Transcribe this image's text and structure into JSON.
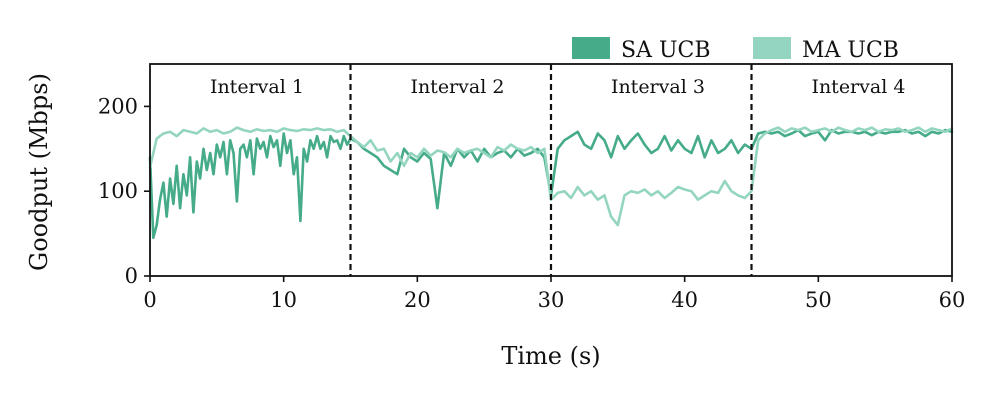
{
  "chart_data": {
    "type": "line",
    "title": "",
    "xlabel": "Time (s)",
    "ylabel": "Goodput (Mbps)",
    "xlim": [
      0,
      60
    ],
    "ylim": [
      0,
      250
    ],
    "xticks": [
      0,
      10,
      20,
      30,
      40,
      50,
      60
    ],
    "yticks": [
      0,
      100,
      200
    ],
    "grid": false,
    "legend_position": "top-right",
    "vlines": [
      15,
      30,
      45
    ],
    "interval_labels": [
      {
        "text": "Interval 1",
        "x": 8
      },
      {
        "text": "Interval 2",
        "x": 23
      },
      {
        "text": "Interval 3",
        "x": 38
      },
      {
        "text": "Interval 4",
        "x": 53
      }
    ],
    "series": [
      {
        "name": "SA UCB",
        "color": "#45ab88",
        "x": [
          0,
          0.25,
          0.5,
          0.75,
          1,
          1.25,
          1.5,
          1.75,
          2,
          2.25,
          2.5,
          2.75,
          3,
          3.25,
          3.5,
          3.75,
          4,
          4.25,
          4.5,
          4.75,
          5,
          5.25,
          5.5,
          5.75,
          6,
          6.25,
          6.5,
          6.75,
          7,
          7.25,
          7.5,
          7.75,
          8,
          8.25,
          8.5,
          8.75,
          9,
          9.25,
          9.5,
          9.75,
          10,
          10.25,
          10.5,
          10.75,
          11,
          11.25,
          11.5,
          11.75,
          12,
          12.25,
          12.5,
          12.75,
          13,
          13.25,
          13.5,
          13.75,
          14,
          14.25,
          14.5,
          14.75,
          15,
          15.5,
          16,
          16.5,
          17,
          17.5,
          18,
          18.5,
          19,
          19.5,
          20,
          20.5,
          21,
          21.5,
          22,
          22.5,
          23,
          23.5,
          24,
          24.5,
          25,
          25.5,
          26,
          26.5,
          27,
          27.5,
          28,
          28.5,
          29,
          29.5,
          30,
          30.5,
          31,
          31.5,
          32,
          32.5,
          33,
          33.5,
          34,
          34.5,
          35,
          35.5,
          36,
          36.5,
          37,
          37.5,
          38,
          38.5,
          39,
          39.5,
          40,
          40.5,
          41,
          41.5,
          42,
          42.5,
          43,
          43.5,
          44,
          44.5,
          45,
          45.5,
          46,
          46.5,
          47,
          47.5,
          48,
          48.5,
          49,
          49.5,
          50,
          50.5,
          51,
          51.5,
          52,
          52.5,
          53,
          53.5,
          54,
          54.5,
          55,
          55.5,
          56,
          56.5,
          57,
          57.5,
          58,
          58.5,
          59,
          59.5,
          60
        ],
        "y": [
          140,
          45,
          60,
          90,
          110,
          70,
          115,
          85,
          130,
          80,
          120,
          95,
          140,
          75,
          135,
          115,
          150,
          125,
          145,
          120,
          155,
          140,
          158,
          120,
          160,
          145,
          88,
          150,
          155,
          140,
          160,
          120,
          162,
          150,
          158,
          140,
          165,
          152,
          160,
          130,
          168,
          145,
          160,
          120,
          140,
          65,
          150,
          135,
          160,
          150,
          165,
          150,
          158,
          140,
          165,
          158,
          160,
          150,
          165,
          155,
          162,
          158,
          150,
          145,
          140,
          130,
          125,
          120,
          150,
          140,
          135,
          145,
          138,
          80,
          145,
          130,
          150,
          140,
          148,
          135,
          150,
          140,
          145,
          148,
          140,
          150,
          142,
          145,
          150,
          140,
          95,
          150,
          160,
          165,
          170,
          155,
          150,
          168,
          160,
          140,
          165,
          150,
          160,
          168,
          155,
          145,
          150,
          165,
          148,
          160,
          150,
          145,
          165,
          140,
          160,
          145,
          150,
          160,
          145,
          155,
          150,
          168,
          170,
          168,
          170,
          165,
          168,
          172,
          165,
          168,
          170,
          160,
          172,
          168,
          170,
          170,
          168,
          170,
          166,
          170,
          168,
          170,
          170,
          172,
          168,
          170,
          165,
          170,
          168,
          172,
          170
        ]
      },
      {
        "name": "MA UCB",
        "color": "#94d5c1",
        "x": [
          0,
          0.5,
          1,
          1.5,
          2,
          2.5,
          3,
          3.5,
          4,
          4.5,
          5,
          5.5,
          6,
          6.5,
          7,
          7.5,
          8,
          8.5,
          9,
          9.5,
          10,
          10.5,
          11,
          11.5,
          12,
          12.5,
          13,
          13.5,
          14,
          14.5,
          15,
          15.5,
          16,
          16.5,
          17,
          17.5,
          18,
          18.5,
          19,
          19.5,
          20,
          20.5,
          21,
          21.5,
          22,
          22.5,
          23,
          23.5,
          24,
          24.5,
          25,
          25.5,
          26,
          26.5,
          27,
          27.5,
          28,
          28.5,
          29,
          29.5,
          30,
          30.5,
          31,
          31.5,
          32,
          32.5,
          33,
          33.5,
          34,
          34.5,
          35,
          35.5,
          36,
          36.5,
          37,
          37.5,
          38,
          38.5,
          39,
          39.5,
          40,
          40.5,
          41,
          41.5,
          42,
          42.5,
          43,
          43.5,
          44,
          44.5,
          45,
          45.5,
          46,
          46.5,
          47,
          47.5,
          48,
          48.5,
          49,
          49.5,
          50,
          50.5,
          51,
          51.5,
          52,
          52.5,
          53,
          53.5,
          54,
          54.5,
          55,
          55.5,
          56,
          56.5,
          57,
          57.5,
          58,
          58.5,
          59,
          59.5,
          60
        ],
        "y": [
          128,
          162,
          168,
          170,
          165,
          172,
          170,
          168,
          174,
          170,
          172,
          168,
          170,
          175,
          172,
          170,
          173,
          171,
          172,
          170,
          174,
          172,
          171,
          173,
          172,
          174,
          172,
          173,
          170,
          172,
          165,
          158,
          152,
          160,
          148,
          150,
          135,
          145,
          130,
          145,
          140,
          150,
          142,
          148,
          146,
          140,
          150,
          145,
          148,
          150,
          145,
          140,
          152,
          148,
          155,
          150,
          148,
          152,
          145,
          150,
          90,
          98,
          100,
          92,
          105,
          95,
          100,
          90,
          95,
          70,
          60,
          95,
          100,
          98,
          102,
          95,
          100,
          92,
          98,
          105,
          102,
          100,
          90,
          95,
          100,
          98,
          112,
          100,
          95,
          92,
          100,
          160,
          168,
          172,
          175,
          170,
          174,
          172,
          175,
          170,
          172,
          174,
          170,
          175,
          172,
          170,
          174,
          172,
          175,
          170,
          173,
          172,
          174,
          170,
          172,
          175,
          170,
          174,
          172,
          170,
          174
        ]
      }
    ]
  }
}
